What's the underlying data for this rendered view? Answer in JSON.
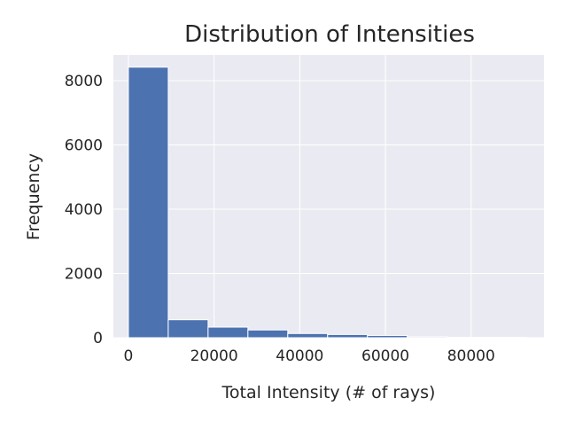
{
  "chart_data": {
    "type": "bar",
    "title": "Distribution of Intensities",
    "xlabel": "Total Intensity (# of rays)",
    "ylabel": "Frequency",
    "bin_edges": [
      0,
      9300,
      18600,
      27900,
      37200,
      46500,
      55800,
      65100,
      74400,
      83700,
      93000
    ],
    "values": [
      8420,
      560,
      330,
      240,
      130,
      100,
      70,
      30,
      10,
      10
    ],
    "xlim": [
      -3500,
      97000
    ],
    "ylim": [
      0,
      8800
    ],
    "xticks": [
      0,
      20000,
      40000,
      60000,
      80000
    ],
    "yticks": [
      0,
      2000,
      4000,
      6000,
      8000
    ],
    "grid": true,
    "colors": {
      "bar": "#4c72b0",
      "bar_edge": "#ffffff",
      "plot_background": "#eaeaf2",
      "grid": "#ffffff"
    }
  }
}
